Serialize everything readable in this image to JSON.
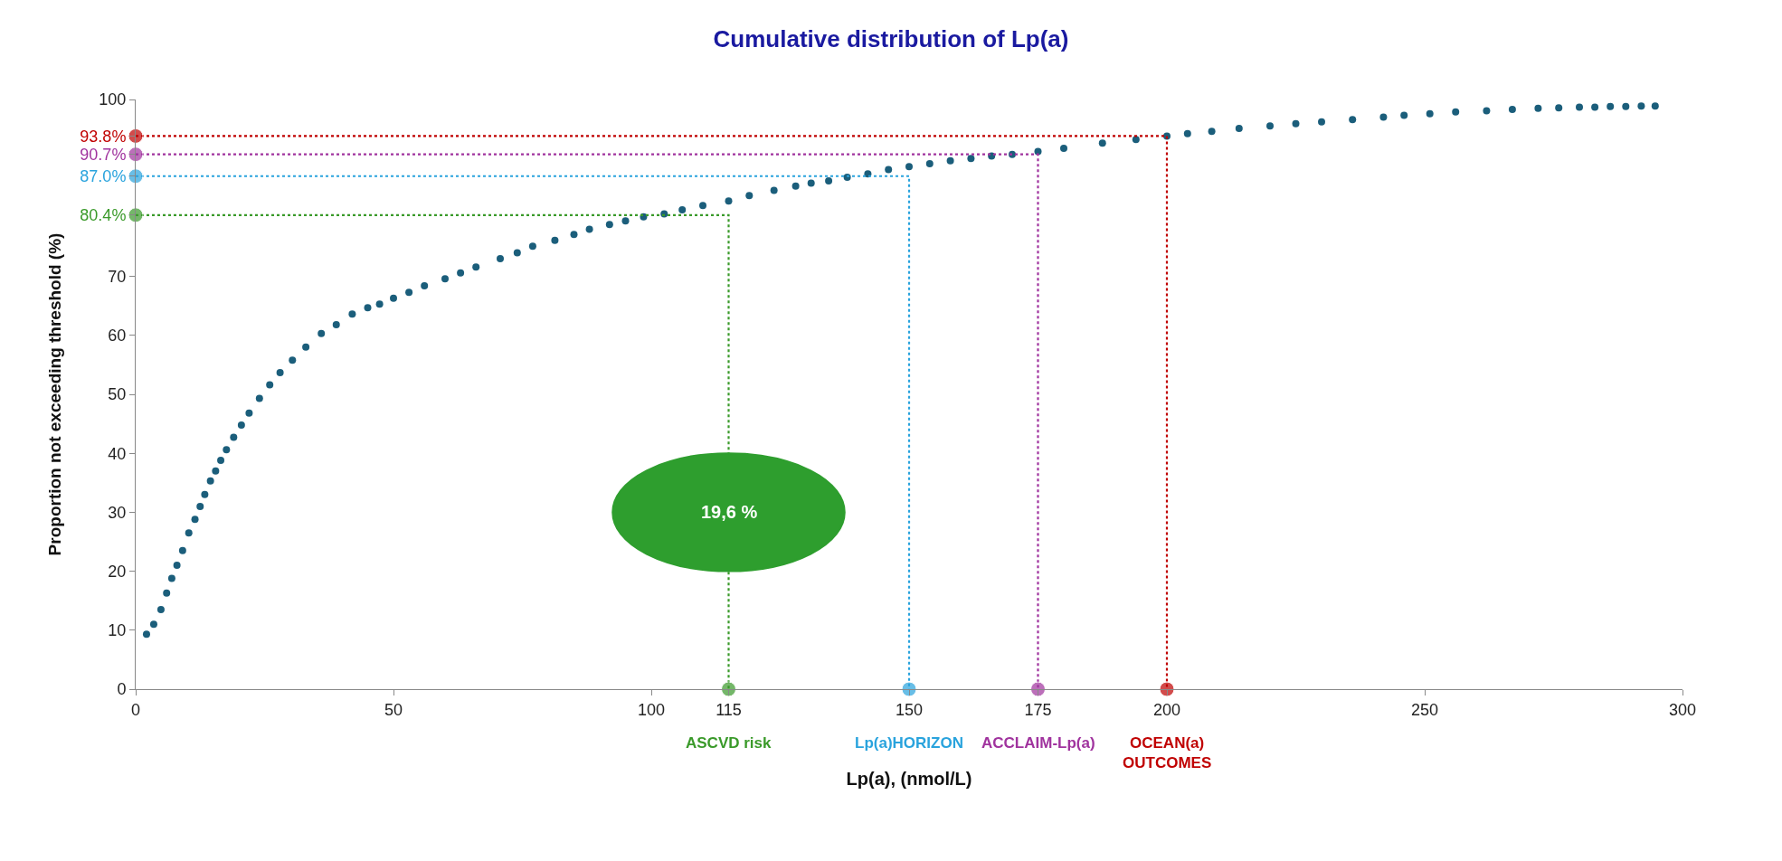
{
  "chart_data": {
    "type": "scatter",
    "title": "Cumulative distribution of Lp(a)",
    "xlabel": "Lp(a), (nmol/L)",
    "ylabel": "Proportion not exceeding threshold (%)",
    "xlim": [
      0,
      300
    ],
    "xticks": [
      0,
      50,
      100,
      115,
      150,
      175,
      200,
      250,
      300
    ],
    "ylim": [
      0,
      100
    ],
    "yticks": [
      0,
      10,
      20,
      30,
      40,
      50,
      60,
      70,
      {
        "value": 80.4,
        "label": "80.4%"
      },
      {
        "value": 87.0,
        "label": "87.0%"
      },
      {
        "value": 90.7,
        "label": "90.7%"
      },
      {
        "value": 93.8,
        "label": "93.8%"
      },
      100
    ],
    "legend": false,
    "marker": "circle",
    "series": [
      {
        "color": "#1b5e7b",
        "x": [
          2.1,
          3.5,
          4.9,
          6,
          7,
          8,
          9.1,
          10.3,
          11.5,
          12.5,
          13.4,
          14.5,
          15.5,
          16.5,
          17.6,
          19,
          20.5,
          22,
          24,
          26,
          28,
          30.4,
          33,
          36,
          38.9,
          42,
          45,
          47.3,
          50,
          53,
          56,
          60,
          63,
          66,
          70.7,
          74,
          77,
          81.3,
          85,
          88,
          91.9,
          95,
          98.5,
          102.5,
          106,
          110,
          115,
          119,
          123.8,
          128,
          131,
          134.4,
          138,
          142,
          146,
          150,
          154,
          158,
          162,
          166,
          170,
          175,
          180,
          187.5,
          194,
          200,
          204,
          208.7,
          214,
          220,
          225,
          230,
          236,
          242,
          246,
          251,
          256,
          262,
          267,
          272,
          276,
          280,
          283,
          286,
          289,
          292,
          294.7
        ],
        "values": [
          9.3,
          11,
          13.5,
          16.3,
          18.8,
          21,
          23.5,
          26.5,
          28.8,
          31,
          33,
          35.3,
          37,
          38.8,
          40.6,
          42.7,
          44.8,
          46.8,
          49.3,
          51.6,
          53.7,
          55.8,
          58,
          60.3,
          61.8,
          63.6,
          64.7,
          65.3,
          66.3,
          67.3,
          68.4,
          69.6,
          70.6,
          71.6,
          73,
          74,
          75.1,
          76.1,
          77.1,
          78,
          78.8,
          79.4,
          80.1,
          80.6,
          81.3,
          82,
          82.8,
          83.7,
          84.6,
          85.3,
          85.8,
          86.2,
          86.8,
          87.4,
          88.1,
          88.6,
          89.1,
          89.6,
          90,
          90.4,
          90.7,
          91.2,
          91.7,
          92.6,
          93.2,
          93.8,
          94.2,
          94.6,
          95.1,
          95.5,
          95.9,
          96.2,
          96.6,
          97,
          97.3,
          97.6,
          97.9,
          98.1,
          98.3,
          98.5,
          98.6,
          98.7,
          98.7,
          98.8,
          98.8,
          98.9,
          98.9
        ]
      },
      {
        "name": "ASCVD risk",
        "type": "line",
        "line_style": "dotted",
        "color": "#3a9a2a",
        "x": [
          0,
          115,
          115
        ],
        "values": [
          80.4,
          80.4,
          0
        ]
      },
      {
        "name": "Lp(a)HORIZON",
        "type": "line",
        "line_style": "dotted",
        "color": "#29a3dd",
        "x": [
          0,
          150,
          150
        ],
        "values": [
          87.0,
          87.0,
          0
        ]
      },
      {
        "name": "ACCLAIM-Lp(a)",
        "type": "line",
        "line_style": "dotted",
        "color": "#a0339e",
        "x": [
          0,
          175,
          175
        ],
        "values": [
          90.7,
          90.7,
          0
        ]
      },
      {
        "name": "OCEAN(a)\nOUTCOMES",
        "type": "line",
        "line_style": "dotted",
        "color": "#c00000",
        "x": [
          0,
          200,
          200
        ],
        "values": [
          93.8,
          93.8,
          0
        ]
      }
    ],
    "annotations": [
      {
        "text": "19,6 %",
        "x": 115,
        "y": 30
      }
    ]
  }
}
